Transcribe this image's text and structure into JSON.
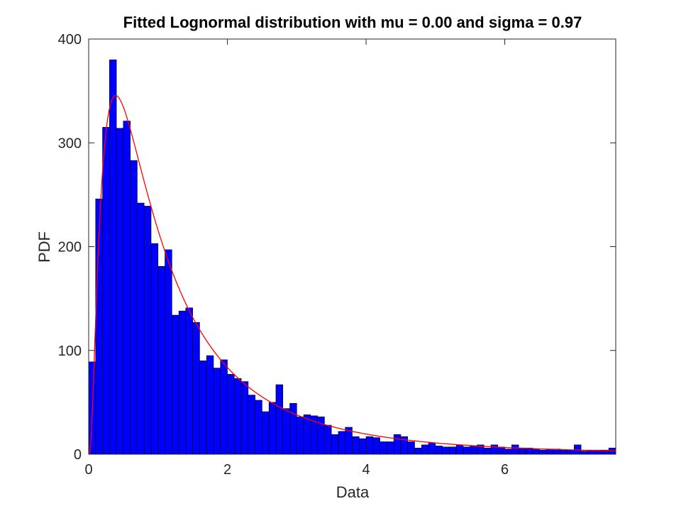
{
  "chart_data": {
    "type": "bar",
    "title": "Fitted Lognormal distribution with mu = 0.00 and sigma = 0.97",
    "xlabel": "Data",
    "ylabel": "PDF",
    "xlim": [
      0,
      7.6
    ],
    "ylim": [
      0,
      400
    ],
    "xticks": [
      0,
      2,
      4,
      6
    ],
    "xtick_labels": [
      "0",
      "2",
      "4",
      "6"
    ],
    "yticks": [
      0,
      100,
      200,
      300,
      400
    ],
    "ytick_labels": [
      "0",
      "100",
      "200",
      "300",
      "400"
    ],
    "grid": false,
    "legend": "none",
    "bar_color": "#0000ff",
    "bar_edge_color": "#000000",
    "fit_color": "#ff0000",
    "bin_width": 0.1,
    "bin_centers": [
      0.05,
      0.15,
      0.25,
      0.35,
      0.45,
      0.55,
      0.65,
      0.75,
      0.85,
      0.95,
      1.05,
      1.15,
      1.25,
      1.35,
      1.45,
      1.55,
      1.65,
      1.75,
      1.85,
      1.95,
      2.05,
      2.15,
      2.25,
      2.35,
      2.45,
      2.55,
      2.65,
      2.75,
      2.85,
      2.95,
      3.05,
      3.15,
      3.25,
      3.35,
      3.45,
      3.55,
      3.65,
      3.75,
      3.85,
      3.95,
      4.05,
      4.15,
      4.25,
      4.35,
      4.45,
      4.55,
      4.65,
      4.75,
      4.85,
      4.95,
      5.05,
      5.15,
      5.25,
      5.35,
      5.45,
      5.55,
      5.65,
      5.75,
      5.85,
      5.95,
      6.05,
      6.15,
      6.25,
      6.35,
      6.45,
      6.55,
      6.65,
      6.75,
      6.85,
      6.95,
      7.05,
      7.15,
      7.25,
      7.35,
      7.45,
      7.55
    ],
    "values": [
      89,
      246,
      315,
      380,
      314,
      321,
      283,
      242,
      239,
      203,
      181,
      197,
      134,
      138,
      141,
      127,
      90,
      95,
      83,
      91,
      77,
      73,
      70,
      57,
      52,
      41,
      50,
      67,
      44,
      49,
      36,
      38,
      37,
      36,
      28,
      19,
      22,
      26,
      17,
      15,
      17,
      16,
      12,
      12,
      19,
      17,
      12,
      6,
      9,
      11,
      8,
      7,
      7,
      9,
      7,
      8,
      9,
      6,
      9,
      7,
      5,
      9,
      6,
      6,
      5,
      4,
      5,
      5,
      4,
      4,
      9,
      3,
      4,
      4,
      4,
      6
    ],
    "fit": {
      "name": "Lognormal fit",
      "distribution": "lognormal",
      "mu": 0.0,
      "sigma": 0.97,
      "scale": 525
    }
  }
}
